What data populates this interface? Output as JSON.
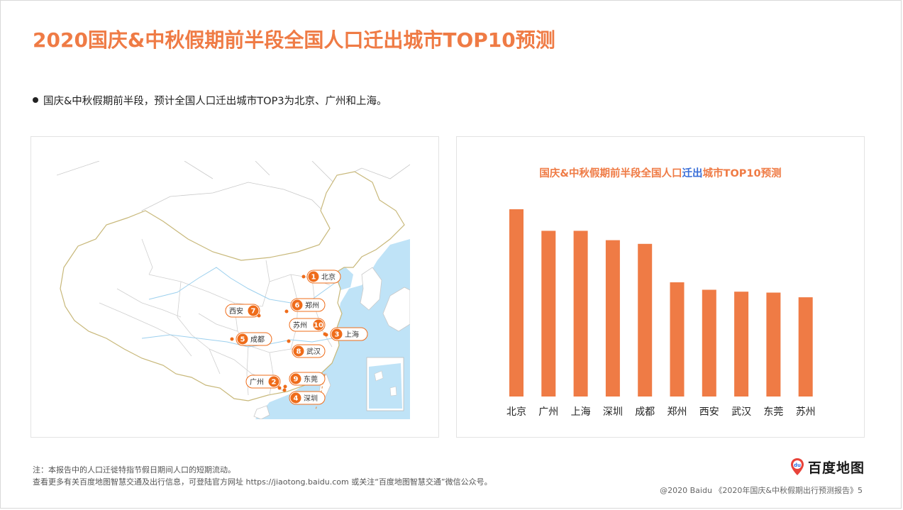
{
  "page": {
    "title": "2020国庆&中秋假期前半段全国人口迁出城市TOP10预测",
    "bullet": "国庆&中秋假期前半段，预计全国人口迁出城市TOP3为北京、广州和上海。"
  },
  "map": {
    "markers": [
      {
        "rank": "1",
        "city": "北京"
      },
      {
        "rank": "2",
        "city": "广州"
      },
      {
        "rank": "3",
        "city": "上海"
      },
      {
        "rank": "4",
        "city": "深圳"
      },
      {
        "rank": "5",
        "city": "成都"
      },
      {
        "rank": "6",
        "city": "郑州"
      },
      {
        "rank": "7",
        "city": "西安"
      },
      {
        "rank": "8",
        "city": "武汉"
      },
      {
        "rank": "9",
        "city": "东莞"
      },
      {
        "rank": "10",
        "city": "苏州"
      }
    ],
    "colors": {
      "marker": "#ef6c1a",
      "sea": "#bfe3f7",
      "border": "#c8b87a"
    }
  },
  "chart_data": {
    "type": "bar",
    "title_parts": [
      "国庆&中秋假期前半段全国人口",
      "迁出",
      "城市TOP10预测"
    ],
    "categories": [
      "北京",
      "广州",
      "上海",
      "深圳",
      "成都",
      "郑州",
      "西安",
      "武汉",
      "东莞",
      "苏州"
    ],
    "values": [
      100,
      88.5,
      88.5,
      83.5,
      81.5,
      61,
      57,
      56,
      55.5,
      53
    ],
    "ylim": [
      0,
      100
    ],
    "grid": false,
    "legend": "none",
    "bar_color": "#ef7b45",
    "highlight_color": "#3a6fd8"
  },
  "notes": {
    "line1": "注：本报告中的人口迁徙特指节假日期间人口的短期流动。",
    "line2": "查看更多有关百度地图智慧交通及出行信息，可登陆官方网址 https://jiaotong.baidu.com 或关注“百度地图智慧交通”微信公众号。"
  },
  "logo": {
    "badge": "du",
    "text": "百度地图"
  },
  "footer": "@2020 Baidu 《2020年国庆&中秋假期出行预测报告》5"
}
